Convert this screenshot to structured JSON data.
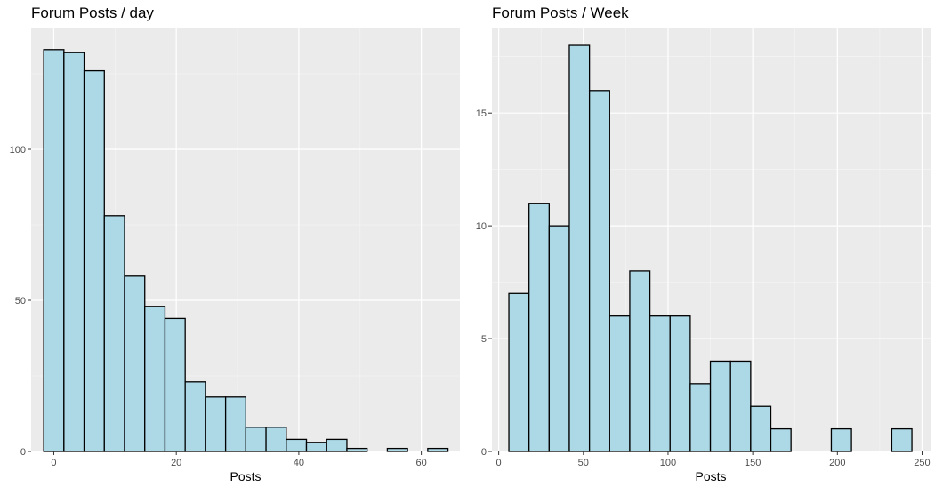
{
  "colors": {
    "panel_background": "#ebebeb",
    "grid_major": "#ffffff",
    "grid_minor": "#f5f5f5",
    "bar_fill": "#add8e6",
    "bar_outline": "#000000",
    "tick_mark": "#333333"
  },
  "chart_data": [
    {
      "type": "bar",
      "title": "Forum Posts / day",
      "xlabel": "Posts",
      "ylabel": "",
      "grid": true,
      "xlim": [
        -3.7,
        66.3
      ],
      "ylim": [
        0,
        140
      ],
      "xticks": [
        0,
        20,
        40,
        60
      ],
      "yticks": [
        0,
        50,
        100
      ],
      "bin_width": 3.3,
      "bin_start": -1.65,
      "values": [
        133,
        132,
        126,
        78,
        58,
        48,
        44,
        23,
        18,
        18,
        8,
        8,
        4,
        3,
        4,
        1,
        0,
        1,
        0,
        1
      ]
    },
    {
      "type": "bar",
      "title": "Forum Posts / Week",
      "xlabel": "Posts",
      "ylabel": "",
      "grid": true,
      "xlim": [
        -4,
        255
      ],
      "ylim": [
        0,
        18.75
      ],
      "xticks": [
        0,
        50,
        100,
        150,
        200,
        250
      ],
      "yticks": [
        0,
        5,
        10,
        15
      ],
      "bin_width": 11.9,
      "bin_start": 6,
      "values": [
        7,
        11,
        10,
        18,
        16,
        6,
        8,
        6,
        6,
        3,
        4,
        4,
        2,
        1,
        0,
        0,
        1,
        0,
        0,
        1
      ]
    }
  ]
}
